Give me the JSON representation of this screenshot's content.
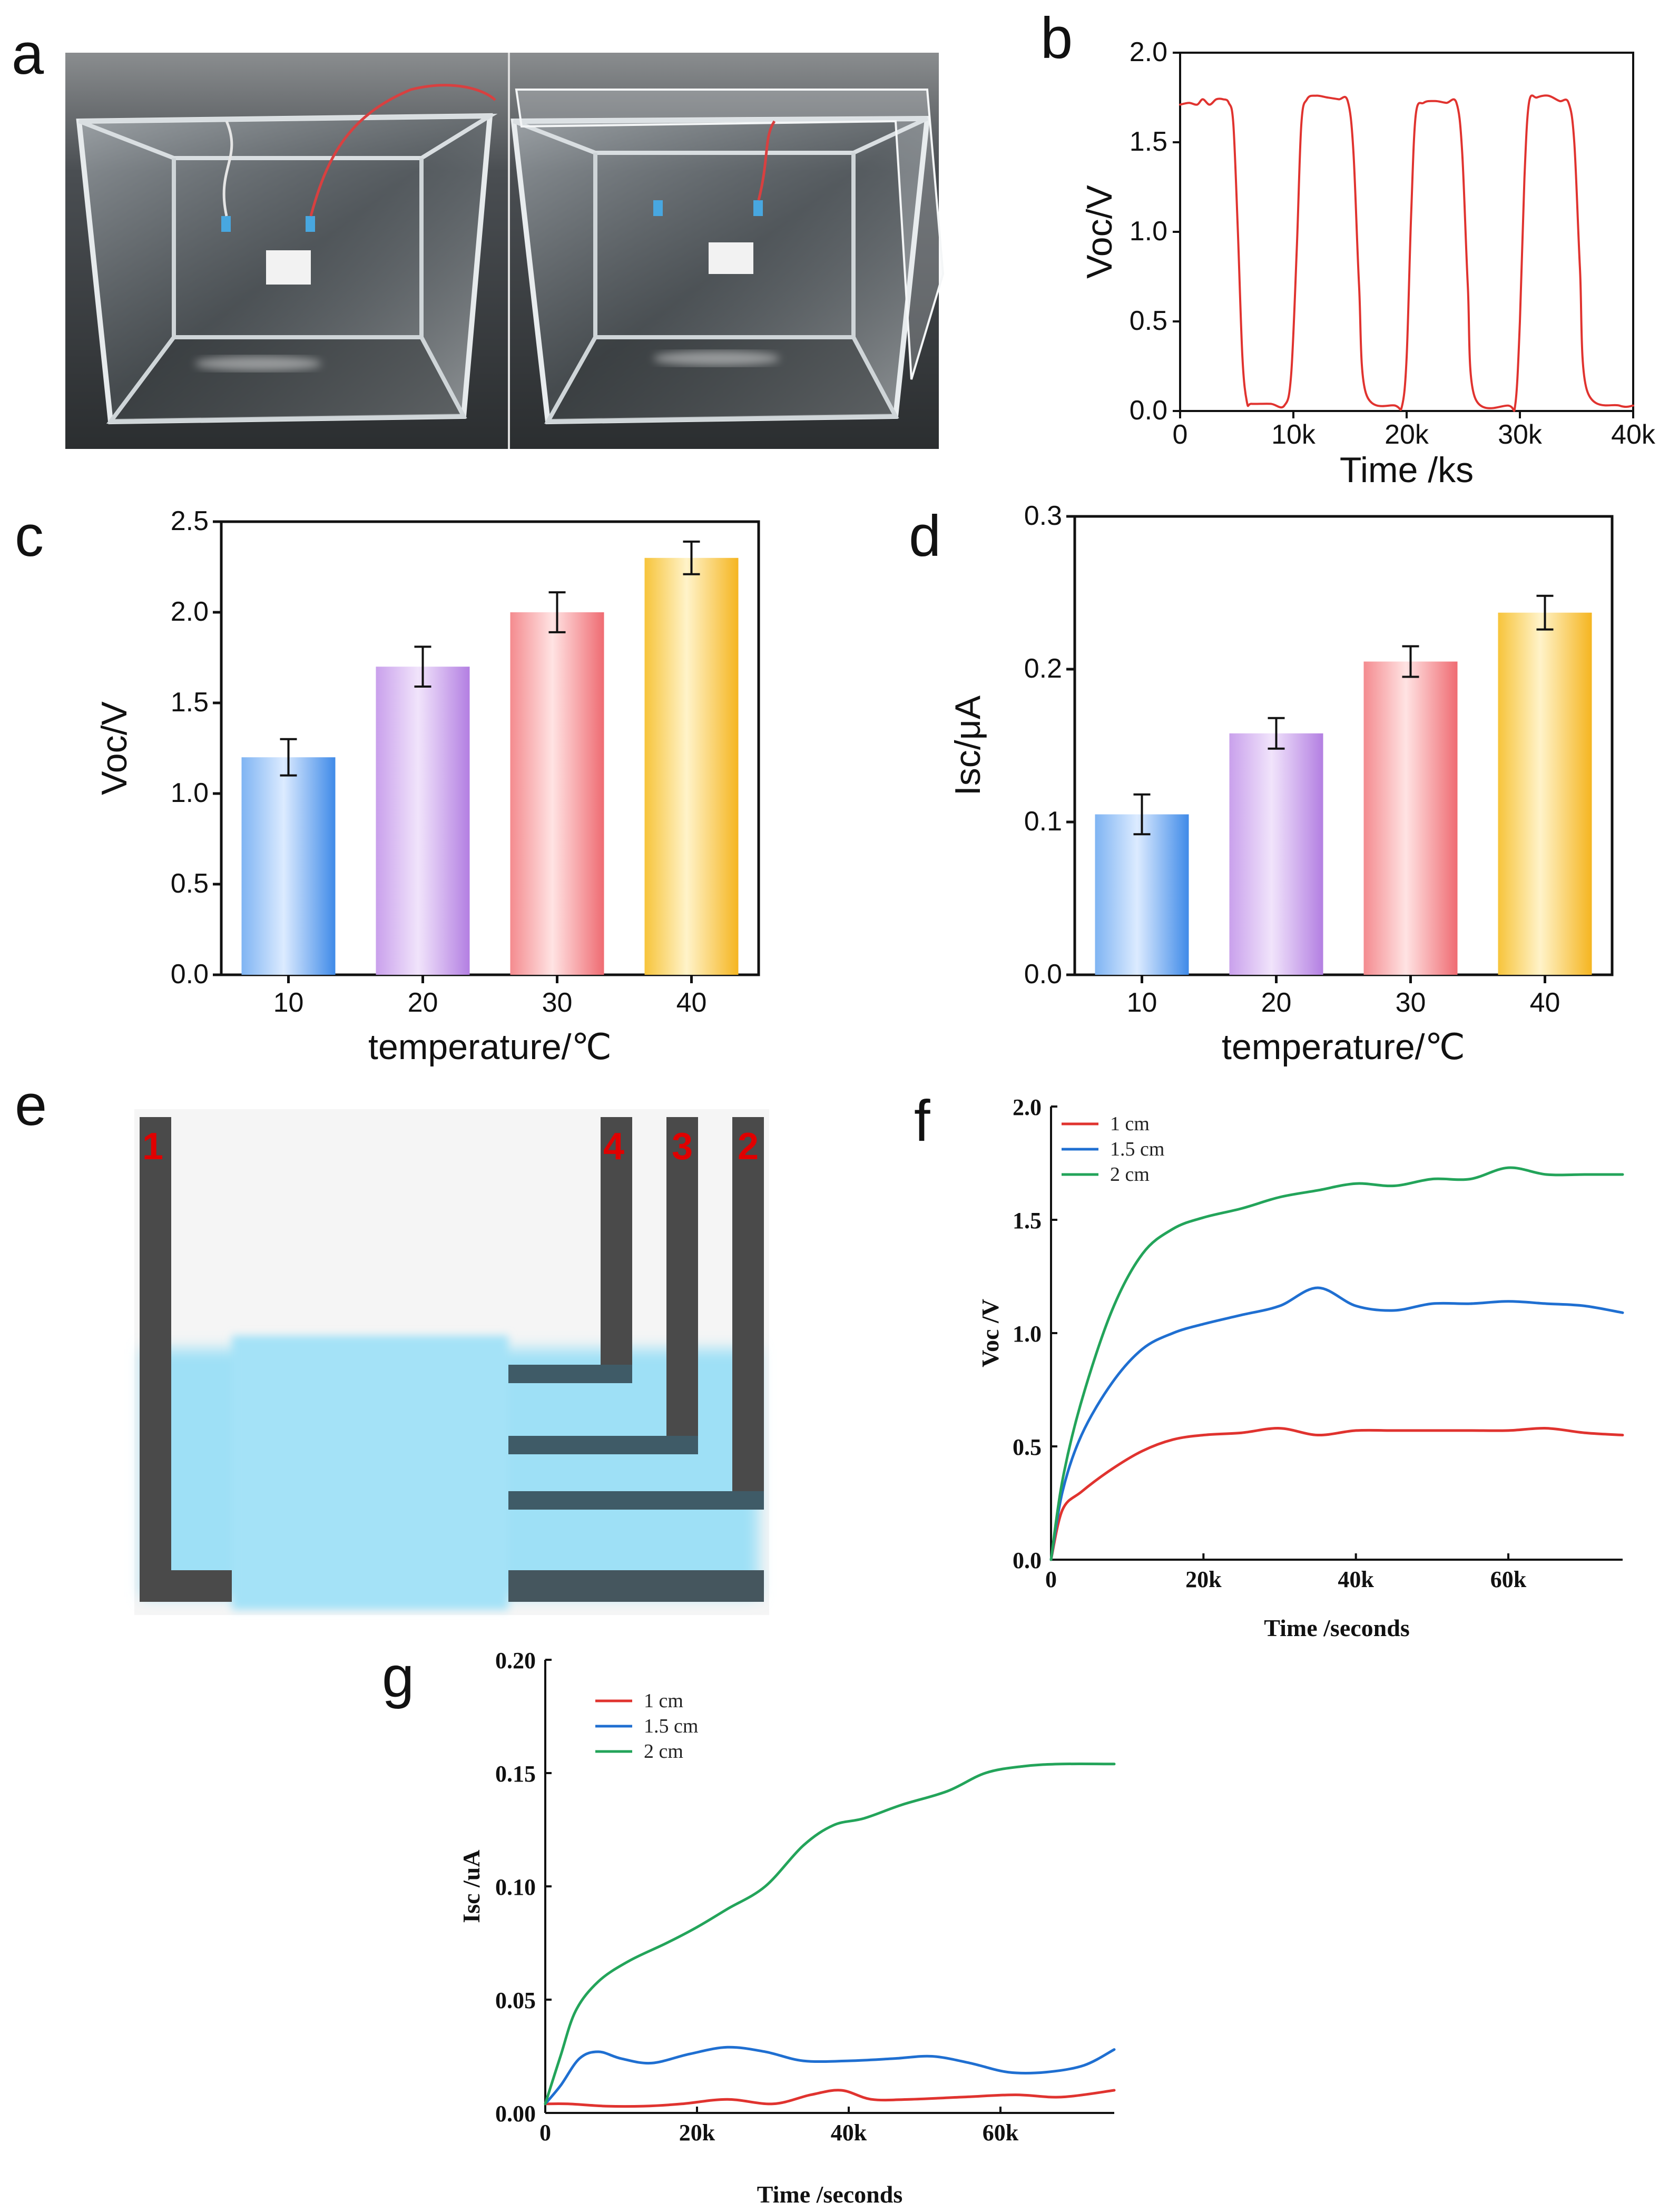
{
  "panels": {
    "a": "a",
    "b": "b",
    "c": "c",
    "d": "d",
    "e": "e",
    "f": "f",
    "g": "g"
  },
  "diagram_e": {
    "electrode_labels": [
      "1",
      "4",
      "3",
      "2"
    ],
    "colors": {
      "electrode": "#4a4a4a",
      "water": "#9fe0f6",
      "label": "#e00000"
    }
  },
  "colors": {
    "red": "#e0332f",
    "blue": "#1f6fd1",
    "green": "#23a45a",
    "bar_blue": "#5a9ef0",
    "bar_purple": "#c59ae8",
    "bar_red": "#f27d83",
    "bar_yellow": "#f7c43b"
  },
  "chart_data": [
    {
      "id": "b",
      "type": "line",
      "xlabel": "Time /ks",
      "ylabel": "Voc/V",
      "xlim": [
        0,
        40000
      ],
      "ylim": [
        0,
        2.0
      ],
      "xticks": [
        0,
        10000,
        20000,
        30000,
        40000
      ],
      "xtick_labels": [
        "0",
        "10k",
        "20k",
        "30k",
        "40k"
      ],
      "yticks": [
        0.0,
        0.5,
        1.0,
        1.5,
        2.0
      ],
      "ytick_labels": [
        "0.0",
        "0.5",
        "1.0",
        "1.5",
        "2.0"
      ],
      "series": [
        {
          "name": "Voc",
          "color": "#e0332f",
          "x": [
            0,
            800,
            1500,
            2000,
            2600,
            3200,
            3800,
            4300,
            4700,
            5100,
            5500,
            5900,
            6300,
            8000,
            9200,
            9800,
            10300,
            10700,
            11200,
            12000,
            13000,
            14000,
            14800,
            15300,
            15800,
            16400,
            19000,
            19600,
            20000,
            20400,
            20800,
            21500,
            22500,
            23500,
            24400,
            24900,
            25400,
            26000,
            29000,
            29600,
            30000,
            30400,
            30800,
            31500,
            32500,
            33500,
            34300,
            34800,
            35300,
            35900,
            38800,
            40000
          ],
          "y": [
            1.71,
            1.72,
            1.71,
            1.74,
            1.71,
            1.74,
            1.74,
            1.72,
            1.6,
            1.0,
            0.3,
            0.05,
            0.04,
            0.04,
            0.03,
            0.2,
            0.9,
            1.6,
            1.74,
            1.76,
            1.75,
            1.74,
            1.73,
            1.45,
            0.7,
            0.1,
            0.03,
            0.03,
            0.3,
            1.1,
            1.65,
            1.72,
            1.73,
            1.72,
            1.72,
            1.45,
            0.7,
            0.08,
            0.03,
            0.04,
            0.5,
            1.3,
            1.72,
            1.75,
            1.76,
            1.73,
            1.72,
            1.5,
            0.8,
            0.12,
            0.03,
            0.03
          ]
        }
      ]
    },
    {
      "id": "c",
      "type": "bar",
      "xlabel": "temperature/℃",
      "ylabel": "Voc/V",
      "ylim": [
        0,
        2.5
      ],
      "yticks": [
        0.0,
        0.5,
        1.0,
        1.5,
        2.0,
        2.5
      ],
      "ytick_labels": [
        "0.0",
        "0.5",
        "1.0",
        "1.5",
        "2.0",
        "2.5"
      ],
      "categories": [
        "10",
        "20",
        "30",
        "40"
      ],
      "values": [
        1.2,
        1.7,
        2.0,
        2.3
      ],
      "errors": [
        0.1,
        0.11,
        0.11,
        0.09
      ]
    },
    {
      "id": "d",
      "type": "bar",
      "xlabel": "temperature/℃",
      "ylabel": "Isc/μA",
      "ylim": [
        0,
        0.3
      ],
      "yticks": [
        0.0,
        0.1,
        0.2,
        0.3
      ],
      "ytick_labels": [
        "0.0",
        "0.1",
        "0.2",
        "0.3"
      ],
      "categories": [
        "10",
        "20",
        "30",
        "40"
      ],
      "values": [
        0.105,
        0.158,
        0.205,
        0.237
      ],
      "errors": [
        0.013,
        0.01,
        0.01,
        0.011
      ]
    },
    {
      "id": "f",
      "type": "line",
      "xlabel": "Time /seconds",
      "ylabel": "Voc /V",
      "xlim": [
        0,
        75000
      ],
      "ylim": [
        0,
        2.0
      ],
      "xticks": [
        0,
        20000,
        40000,
        60000
      ],
      "xtick_labels": [
        "0",
        "20k",
        "40k",
        "60k"
      ],
      "yticks": [
        0.0,
        0.5,
        1.0,
        1.5,
        2.0
      ],
      "ytick_labels": [
        "0.0",
        "0.5",
        "1.0",
        "1.5",
        "2.0"
      ],
      "legend": [
        "1 cm",
        "1.5 cm",
        "2 cm"
      ],
      "series": [
        {
          "name": "1 cm",
          "color": "#e0332f",
          "x": [
            0,
            1500,
            4000,
            8000,
            12000,
            16000,
            20000,
            25000,
            30000,
            35000,
            40000,
            45000,
            50000,
            55000,
            60000,
            65000,
            70000,
            75000
          ],
          "y": [
            0.0,
            0.22,
            0.3,
            0.4,
            0.48,
            0.53,
            0.55,
            0.56,
            0.58,
            0.55,
            0.57,
            0.57,
            0.57,
            0.57,
            0.57,
            0.58,
            0.56,
            0.55
          ]
        },
        {
          "name": "1.5 cm",
          "color": "#1f6fd1",
          "x": [
            0,
            1500,
            4000,
            8000,
            12000,
            16000,
            20000,
            25000,
            30000,
            35000,
            40000,
            45000,
            50000,
            55000,
            60000,
            65000,
            70000,
            75000
          ],
          "y": [
            0.0,
            0.3,
            0.55,
            0.78,
            0.93,
            1.0,
            1.04,
            1.08,
            1.12,
            1.2,
            1.12,
            1.1,
            1.13,
            1.13,
            1.14,
            1.13,
            1.12,
            1.09
          ]
        },
        {
          "name": "2 cm",
          "color": "#23a45a",
          "x": [
            0,
            1500,
            4000,
            8000,
            12000,
            16000,
            20000,
            25000,
            30000,
            35000,
            40000,
            45000,
            50000,
            55000,
            60000,
            65000,
            70000,
            75000
          ],
          "y": [
            0.0,
            0.35,
            0.7,
            1.1,
            1.35,
            1.46,
            1.51,
            1.55,
            1.6,
            1.63,
            1.66,
            1.65,
            1.68,
            1.68,
            1.73,
            1.7,
            1.7,
            1.7
          ]
        }
      ]
    },
    {
      "id": "g",
      "type": "line",
      "xlabel": "Time /seconds",
      "ylabel": "Isc /uA",
      "xlim": [
        0,
        75000
      ],
      "ylim": [
        0,
        0.2
      ],
      "xticks": [
        0,
        20000,
        40000,
        60000
      ],
      "xtick_labels": [
        "0",
        "20k",
        "40k",
        "60k"
      ],
      "yticks": [
        0.0,
        0.05,
        0.1,
        0.15,
        0.2
      ],
      "ytick_labels": [
        "0.00",
        "0.05",
        "0.10",
        "0.15",
        "0.20"
      ],
      "legend": [
        "1 cm",
        "1.5 cm",
        "2 cm"
      ],
      "series": [
        {
          "name": "1 cm",
          "color": "#e0332f",
          "x": [
            0,
            3000,
            8000,
            13000,
            18000,
            24000,
            30000,
            35000,
            39000,
            43000,
            48000,
            55000,
            62000,
            68000,
            75000
          ],
          "y": [
            0.004,
            0.004,
            0.003,
            0.003,
            0.004,
            0.006,
            0.004,
            0.008,
            0.01,
            0.006,
            0.006,
            0.007,
            0.008,
            0.007,
            0.01
          ]
        },
        {
          "name": "1.5 cm",
          "color": "#1f6fd1",
          "x": [
            0,
            2000,
            4500,
            7000,
            10000,
            14000,
            19000,
            24000,
            29000,
            34000,
            40000,
            46000,
            51000,
            56000,
            61000,
            66000,
            71000,
            75000
          ],
          "y": [
            0.004,
            0.012,
            0.024,
            0.027,
            0.024,
            0.022,
            0.026,
            0.029,
            0.027,
            0.023,
            0.023,
            0.024,
            0.025,
            0.022,
            0.018,
            0.018,
            0.021,
            0.028
          ]
        },
        {
          "name": "2 cm",
          "color": "#23a45a",
          "x": [
            0,
            2000,
            4000,
            7000,
            11000,
            16000,
            20000,
            24000,
            29000,
            34000,
            38000,
            42000,
            47000,
            53000,
            58000,
            63000,
            68000,
            75000
          ],
          "y": [
            0.004,
            0.025,
            0.045,
            0.058,
            0.067,
            0.075,
            0.082,
            0.09,
            0.1,
            0.118,
            0.127,
            0.13,
            0.136,
            0.142,
            0.15,
            0.153,
            0.154,
            0.154
          ]
        }
      ]
    }
  ]
}
